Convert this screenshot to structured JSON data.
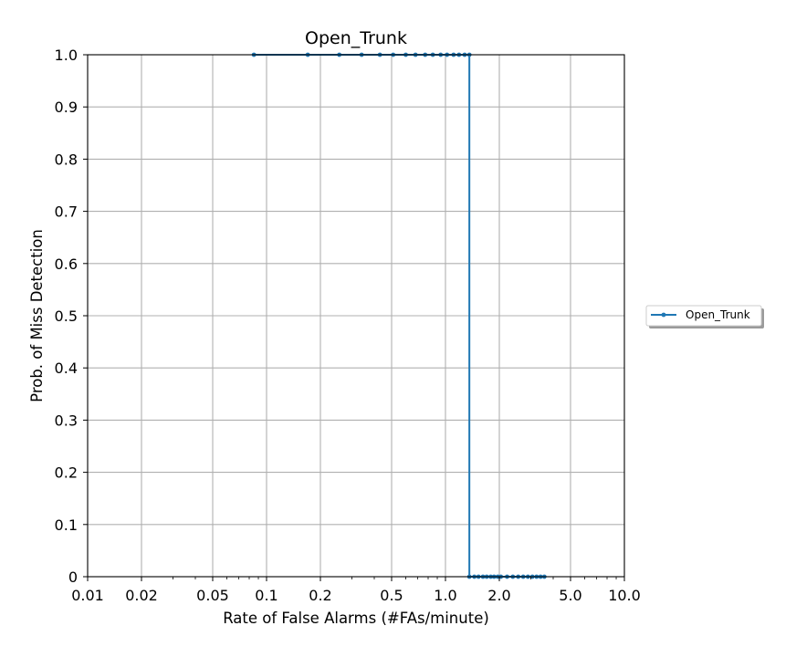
{
  "chart_data": {
    "type": "line",
    "title": "Open_Trunk",
    "xlabel": "Rate of False Alarms (#FAs/minute)",
    "ylabel": "Prob. of Miss Detection",
    "xscale": "log",
    "xlim": [
      0.01,
      10.0
    ],
    "ylim": [
      0,
      1.0
    ],
    "grid": true,
    "legend_position": "right",
    "x_ticks": [
      0.01,
      0.02,
      0.05,
      0.1,
      0.2,
      0.5,
      1.0,
      2.0,
      5.0,
      10.0
    ],
    "x_tick_labels": [
      "0.01",
      "0.02",
      "0.05",
      "0.1",
      "0.2",
      "0.5",
      "1.0",
      "2.0",
      "5.0",
      "10.0"
    ],
    "y_ticks": [
      0,
      0.1,
      0.2,
      0.3,
      0.4,
      0.5,
      0.6,
      0.7,
      0.8,
      0.9,
      1.0
    ],
    "y_tick_labels": [
      "0",
      "0.1",
      "0.2",
      "0.3",
      "0.4",
      "0.5",
      "0.6",
      "0.7",
      "0.8",
      "0.9",
      "1.0"
    ],
    "series": [
      {
        "name": "Open_Trunk",
        "color": "#1f77b4",
        "x": [
          0.085,
          0.17,
          0.255,
          0.34,
          0.43,
          0.51,
          0.6,
          0.68,
          0.77,
          0.85,
          0.94,
          1.02,
          1.11,
          1.19,
          1.28,
          1.36,
          1.36,
          1.45,
          1.53,
          1.62,
          1.7,
          1.79,
          1.87,
          1.96,
          2.04,
          2.21,
          2.38,
          2.55,
          2.72,
          2.89,
          3.06,
          3.23,
          3.4,
          3.57
        ],
        "y": [
          1.0,
          1.0,
          1.0,
          1.0,
          1.0,
          1.0,
          1.0,
          1.0,
          1.0,
          1.0,
          1.0,
          1.0,
          1.0,
          1.0,
          1.0,
          1.0,
          0.0,
          0.0,
          0.0,
          0.0,
          0.0,
          0.0,
          0.0,
          0.0,
          0.0,
          0.0,
          0.0,
          0.0,
          0.0,
          0.0,
          0.0,
          0.0,
          0.0,
          0.0
        ]
      }
    ]
  }
}
